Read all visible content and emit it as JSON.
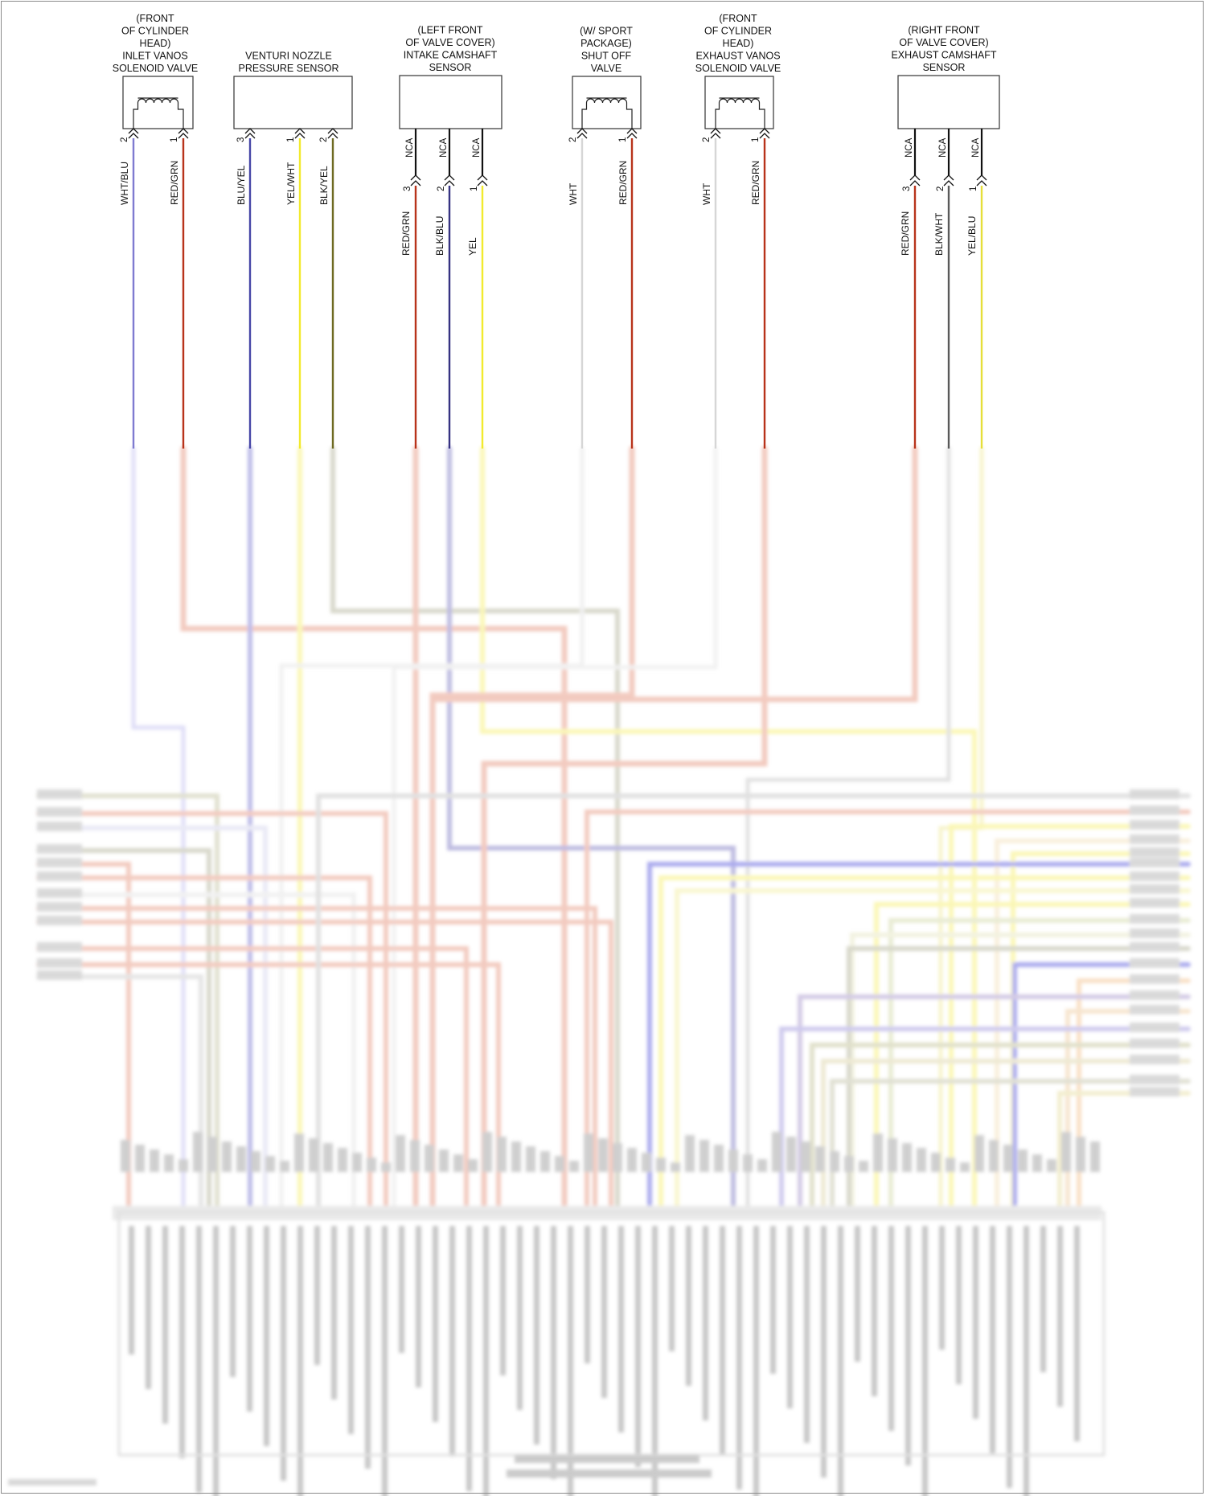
{
  "components": [
    {
      "id": "inlet_vanos",
      "lines": [
        "(FRONT",
        "OF CYLINDER",
        "HEAD)",
        "INLET VANOS",
        "SOLENOID VALVE"
      ],
      "kind": "solenoid",
      "pins": [
        {
          "num": "2",
          "color": "WHT/BLU",
          "hex": "#7f7bd0"
        },
        {
          "num": "1",
          "color": "RED/GRN",
          "hex": "#b8331b"
        }
      ]
    },
    {
      "id": "venturi",
      "lines": [
        "VENTURI NOZZLE",
        "PRESSURE SENSOR"
      ],
      "kind": "box",
      "pins": [
        {
          "num": "3",
          "color": "BLU/YEL",
          "hex": "#4646a6"
        },
        {
          "num": "1",
          "color": "YEL/WHT",
          "hex": "#f2ea2e"
        },
        {
          "num": "2",
          "color": "BLK/YEL",
          "hex": "#6e6a22"
        }
      ]
    },
    {
      "id": "intake_cam",
      "lines": [
        "(LEFT FRONT",
        "OF VALVE COVER)",
        "INTAKE CAMSHAFT",
        "SENSOR"
      ],
      "kind": "sensor",
      "pins": [
        {
          "num": "3",
          "nca": "NCA",
          "color": "RED/GRN",
          "hex": "#b8331b"
        },
        {
          "num": "2",
          "nca": "NCA",
          "color": "BLK/BLU",
          "hex": "#363282"
        },
        {
          "num": "1",
          "nca": "NCA",
          "color": "YEL",
          "hex": "#f2ea2e"
        }
      ]
    },
    {
      "id": "shutoff",
      "lines": [
        "(W/ SPORT",
        "PACKAGE)",
        "SHUT OFF",
        "VALVE"
      ],
      "kind": "solenoid",
      "pins": [
        {
          "num": "2",
          "color": "WHT",
          "hex": "#d6d6d6"
        },
        {
          "num": "1",
          "color": "RED/GRN",
          "hex": "#b8331b"
        }
      ]
    },
    {
      "id": "exhaust_vanos",
      "lines": [
        "(FRONT",
        "OF CYLINDER",
        "HEAD)",
        "EXHAUST VANOS",
        "SOLENOID VALVE"
      ],
      "kind": "solenoid",
      "pins": [
        {
          "num": "2",
          "color": "WHT",
          "hex": "#d6d6d6"
        },
        {
          "num": "1",
          "color": "RED/GRN",
          "hex": "#b8331b"
        }
      ]
    },
    {
      "id": "exhaust_cam",
      "lines": [
        "(RIGHT FRONT",
        "OF VALVE COVER)",
        "EXHAUST CAMSHAFT",
        "SENSOR"
      ],
      "kind": "sensor",
      "pins": [
        {
          "num": "3",
          "nca": "NCA",
          "color": "RED/GRN",
          "hex": "#b8331b"
        },
        {
          "num": "2",
          "nca": "NCA",
          "color": "BLK/WHT",
          "hex": "#5a5a5a"
        },
        {
          "num": "1",
          "nca": "NCA",
          "color": "YEL/BLU",
          "hex": "#e6df3a"
        }
      ]
    }
  ]
}
